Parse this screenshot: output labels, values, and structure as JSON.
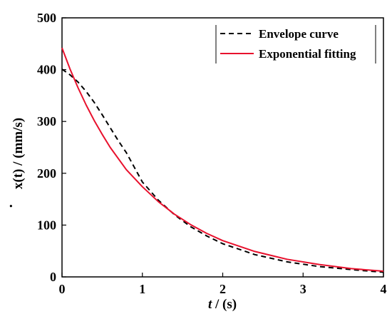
{
  "chart_data": {
    "type": "line",
    "title": "",
    "xlabel": {
      "italic": "t",
      "rest": " / (s)"
    },
    "ylabel": {
      "dot": "·",
      "main": "x(t) / (mm/s)"
    },
    "xlim": [
      0,
      4
    ],
    "ylim": [
      0,
      500
    ],
    "x_ticks": [
      0,
      1,
      2,
      3,
      4
    ],
    "y_ticks": [
      0,
      100,
      200,
      300,
      400,
      500
    ],
    "grid": false,
    "legend_position": "top-right",
    "series": [
      {
        "name": "Envelope curve",
        "color": "#000000",
        "style": "dashed",
        "x": [
          0,
          0.1,
          0.2,
          0.3,
          0.4,
          0.5,
          0.6,
          0.7,
          0.8,
          1.0,
          1.2,
          1.4,
          1.6,
          1.8,
          2.0,
          2.4,
          2.8,
          3.2,
          3.6,
          4.0
        ],
        "y": [
          401,
          390,
          376,
          358,
          337,
          313,
          288,
          263,
          240,
          183,
          148,
          120,
          97,
          79,
          64,
          43,
          29,
          20,
          14,
          9
        ]
      },
      {
        "name": "Exponential fitting",
        "color": "#e8112d",
        "style": "solid",
        "x": [
          0,
          0.1,
          0.2,
          0.3,
          0.4,
          0.5,
          0.6,
          0.8,
          1.0,
          1.2,
          1.4,
          1.6,
          1.8,
          2.0,
          2.4,
          2.8,
          3.2,
          3.6,
          4.0
        ],
        "y": [
          442,
          401,
          365,
          332,
          302,
          275,
          250,
          207,
          174,
          145,
          121,
          101,
          84,
          70,
          49,
          34,
          24,
          16,
          11
        ]
      }
    ]
  }
}
